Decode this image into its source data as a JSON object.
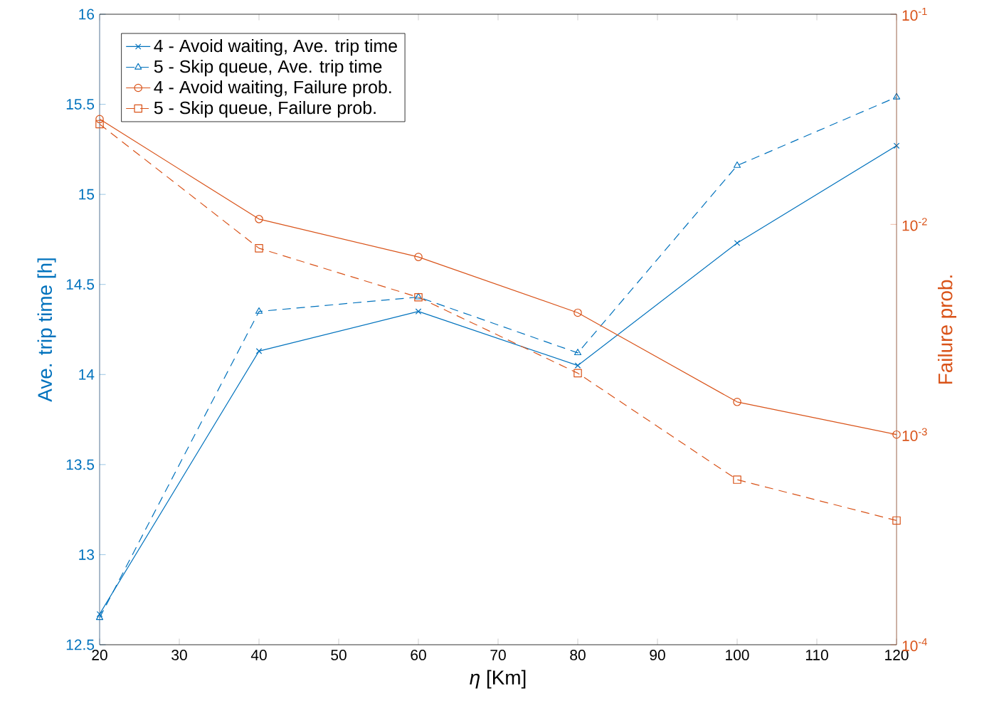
{
  "chart_data": {
    "type": "line",
    "xlabel": "*η* [Km]",
    "ylabel": "Ave. trip time [h]",
    "y2label": "Failure prob.",
    "x": [
      20,
      40,
      60,
      80,
      100,
      120
    ],
    "series": [
      {
        "name": "4 - Avoid waiting, Ave. trip time",
        "color": "#0072bd",
        "marker": "cross",
        "line_style": "solid",
        "values": [
          12.67,
          14.13,
          14.35,
          14.05,
          14.73,
          15.27
        ]
      },
      {
        "name": "5 - Skip queue, Ave. trip time",
        "color": "#0072bd",
        "marker": "triangle",
        "line_style": "dashed",
        "values": [
          12.65,
          14.35,
          14.43,
          14.12,
          15.16,
          15.54
        ]
      },
      {
        "name": "4 - Avoid waiting, Failure prob.",
        "color": "#d95319",
        "marker": "circle",
        "line_style": "solid",
        "axis": "y2",
        "values": [
          0.0317,
          0.0106,
          0.007,
          0.0038,
          0.00143,
          0.001
        ]
      },
      {
        "name": "5 - Skip queue, Failure prob.",
        "color": "#d95319",
        "marker": "square",
        "line_style": "dashed",
        "axis": "y2",
        "values": [
          0.03,
          0.0077,
          0.0045,
          0.00196,
          0.00061,
          0.00039
        ]
      }
    ],
    "xlim": [
      20,
      120
    ],
    "xticks": [
      20,
      30,
      40,
      50,
      60,
      70,
      80,
      90,
      100,
      110,
      120
    ],
    "ylim": [
      12.5,
      16
    ],
    "yticks": [
      12.5,
      13,
      13.5,
      14,
      14.5,
      15,
      15.5,
      16
    ],
    "y2lim": [
      0.0001,
      0.1
    ],
    "y2ticks": [
      {
        "value": 0.0001,
        "label": "10$^{-4}$"
      },
      {
        "value": 0.001,
        "label": "10$^{-3}$"
      },
      {
        "value": 0.01,
        "label": "10$^{-2}$"
      },
      {
        "value": 0.1,
        "label": "10$^{-1}$"
      }
    ],
    "log": "y2",
    "grid": false,
    "legend": "top left"
  }
}
